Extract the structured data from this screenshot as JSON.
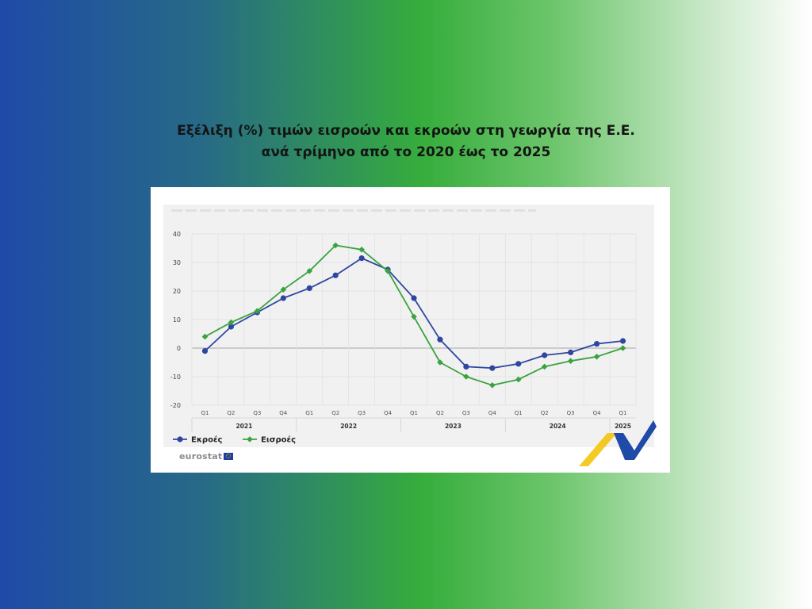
{
  "title": {
    "line1": "Εξέλιξη (%) τιμών εισροών και εκροών στη γεωργία της Ε.Ε.",
    "line2": "ανά τρίμηνο από το 2020 έως το 2025"
  },
  "chart_data": {
    "type": "line",
    "categories": [
      "Q1",
      "Q2",
      "Q3",
      "Q4",
      "Q1",
      "Q2",
      "Q3",
      "Q4",
      "Q1",
      "Q2",
      "Q3",
      "Q4",
      "Q1",
      "Q2",
      "Q3",
      "Q4",
      "Q1"
    ],
    "year_labels": [
      {
        "label": "2021",
        "start": 0,
        "end": 3
      },
      {
        "label": "2022",
        "start": 4,
        "end": 7
      },
      {
        "label": "2023",
        "start": 8,
        "end": 11
      },
      {
        "label": "2024",
        "start": 12,
        "end": 15
      },
      {
        "label": "2025",
        "start": 16,
        "end": 16
      }
    ],
    "yticks": [
      40,
      30,
      20,
      10,
      0,
      -10,
      -20
    ],
    "ylim": [
      -20,
      40
    ],
    "grid": true,
    "legend_position": "bottom-left",
    "series": [
      {
        "name": "Εκροές",
        "color": "#2f46a0",
        "marker": "circle",
        "values": [
          -1,
          7.5,
          12.5,
          17.5,
          21,
          25.5,
          31.5,
          27.5,
          17.5,
          3,
          -6.5,
          -7,
          -5.5,
          -2.5,
          -1.5,
          1.5,
          2.5
        ]
      },
      {
        "name": "Εισροές",
        "color": "#3aa33f",
        "marker": "diamond",
        "values": [
          4,
          9,
          13,
          20.5,
          27,
          36,
          34.5,
          27,
          11,
          -5,
          -10,
          -13,
          -11,
          -6.5,
          -4.5,
          -3,
          0
        ]
      }
    ]
  },
  "footer": {
    "source_logo_text": "eurostat",
    "source_logo_name": "eurostat-logo"
  },
  "colors": {
    "logo_blue": "#1f4aa8",
    "logo_yellow": "#f2c200"
  }
}
